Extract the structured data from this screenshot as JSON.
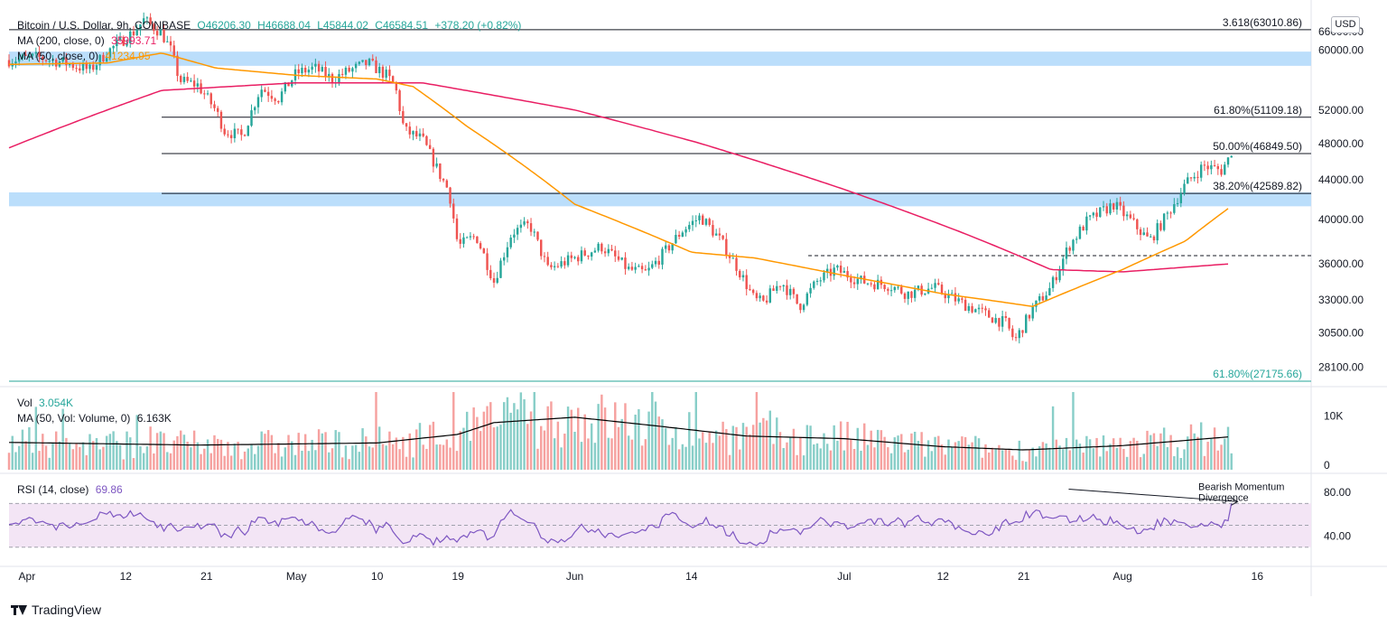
{
  "header": {
    "symbol": "Bitcoin / U.S. Dollar, 9h, COINBASE",
    "open": "O46206.30",
    "high": "H46688.04",
    "low": "L45844.02",
    "close": "C46584.51",
    "change": "+378.20 (+0.82%)",
    "ma200_label": "MA (200, close, 0)",
    "ma200_value": "35993.71",
    "ma50_label": "MA (50, close, 0)",
    "ma50_value": "41234.95",
    "vol_label": "Vol",
    "vol_value": "3.054K",
    "volma_label": "MA (50, Vol: Volume, 0)",
    "volma_value": "6.163K",
    "rsi_label": "RSI (14, close)",
    "rsi_value": "69.86"
  },
  "currency_button": "USD",
  "branding": "TradingView",
  "chart_data": {
    "type": "candlestick",
    "colors": {
      "up": "#26a69a",
      "down": "#ef5350",
      "ma200": "#e91e63",
      "ma50": "#ff9800",
      "volma": "#000000",
      "rsi": "#7e57c2",
      "rsi_band": "#f3e5f5",
      "zone": "#bbdefb"
    },
    "price_axis": {
      "scale": "log",
      "ylim": [
        27000,
        66500
      ],
      "ticks": [
        {
          "v": 60000,
          "t": "60000.00"
        },
        {
          "v": 52000,
          "t": "52000.00"
        },
        {
          "v": 48000,
          "t": "48000.00"
        },
        {
          "v": 44000,
          "t": "44000.00"
        },
        {
          "v": 40000,
          "t": "40000.00"
        },
        {
          "v": 36000,
          "t": "36000.00"
        },
        {
          "v": 33000,
          "t": "33000.00"
        },
        {
          "v": 30500,
          "t": "30500.00"
        },
        {
          "v": 28100,
          "t": "28100.00"
        }
      ],
      "partial_top_tick": {
        "v": 66000,
        "t": "66000.00"
      }
    },
    "x_axis": {
      "start": "2021-03-30",
      "end": "2021-08-22",
      "ticks": [
        {
          "date": "2021-04-01",
          "t": "Apr"
        },
        {
          "date": "2021-04-12",
          "t": "12"
        },
        {
          "date": "2021-04-21",
          "t": "21"
        },
        {
          "date": "2021-05-01",
          "t": "May"
        },
        {
          "date": "2021-05-10",
          "t": "10"
        },
        {
          "date": "2021-05-19",
          "t": "19"
        },
        {
          "date": "2021-06-01",
          "t": "Jun"
        },
        {
          "date": "2021-06-14",
          "t": "14"
        },
        {
          "date": "2021-07-01",
          "t": "Jul"
        },
        {
          "date": "2021-07-12",
          "t": "12"
        },
        {
          "date": "2021-07-21",
          "t": "21"
        },
        {
          "date": "2021-08-01",
          "t": "Aug"
        },
        {
          "date": "2021-08-16",
          "t": "16"
        }
      ]
    },
    "fib_levels": [
      {
        "label": "3.618(63010.86)",
        "value": 63010.86,
        "from": "2021-03-30"
      },
      {
        "label": "61.80%(51109.18)",
        "value": 51109.18,
        "from": "2021-04-16"
      },
      {
        "label": "50.00%(46849.50)",
        "value": 46849.5,
        "from": "2021-04-16"
      },
      {
        "label": "38.20%(42589.82)",
        "value": 42589.82,
        "from": "2021-04-16"
      },
      {
        "label": "61.80%(27175.66)",
        "value": 27175.66,
        "from": "2021-03-30",
        "color": "#26a69a"
      }
    ],
    "zones": [
      {
        "low": 57800,
        "high": 59800
      },
      {
        "low": 41300,
        "high": 42700
      }
    ],
    "dashed_level": {
      "value": 36700,
      "from": "2021-06-27",
      "to": "2021-08-13"
    },
    "price_path": [
      [
        "2021-03-30",
        58600
      ],
      [
        "2021-04-02",
        59000
      ],
      [
        "2021-04-05",
        58300
      ],
      [
        "2021-04-08",
        57200
      ],
      [
        "2021-04-10",
        59800
      ],
      [
        "2021-04-13",
        62800
      ],
      [
        "2021-04-14",
        64500
      ],
      [
        "2021-04-16",
        62500
      ],
      [
        "2021-04-17",
        60000
      ],
      [
        "2021-04-18",
        55800
      ],
      [
        "2021-04-20",
        55200
      ],
      [
        "2021-04-22",
        52000
      ],
      [
        "2021-04-23",
        49500
      ],
      [
        "2021-04-25",
        48800
      ],
      [
        "2021-04-27",
        54800
      ],
      [
        "2021-04-29",
        53500
      ],
      [
        "2021-05-01",
        56800
      ],
      [
        "2021-05-03",
        57500
      ],
      [
        "2021-05-05",
        56000
      ],
      [
        "2021-05-07",
        57200
      ],
      [
        "2021-05-09",
        58200
      ],
      [
        "2021-05-11",
        56500
      ],
      [
        "2021-05-12",
        55000
      ],
      [
        "2021-05-13",
        49500
      ],
      [
        "2021-05-15",
        48500
      ],
      [
        "2021-05-17",
        44500
      ],
      [
        "2021-05-18",
        42800
      ],
      [
        "2021-05-19",
        37500
      ],
      [
        "2021-05-21",
        38500
      ],
      [
        "2021-05-23",
        34500
      ],
      [
        "2021-05-25",
        38800
      ],
      [
        "2021-05-27",
        39500
      ],
      [
        "2021-05-29",
        35500
      ],
      [
        "2021-06-01",
        36500
      ],
      [
        "2021-06-04",
        37500
      ],
      [
        "2021-06-07",
        35500
      ],
      [
        "2021-06-09",
        35200
      ],
      [
        "2021-06-11",
        37000
      ],
      [
        "2021-06-13",
        39000
      ],
      [
        "2021-06-15",
        40300
      ],
      [
        "2021-06-17",
        38300
      ],
      [
        "2021-06-19",
        35800
      ],
      [
        "2021-06-21",
        33000
      ],
      [
        "2021-06-22",
        32800
      ],
      [
        "2021-06-24",
        34500
      ],
      [
        "2021-06-26",
        32500
      ],
      [
        "2021-06-28",
        34500
      ],
      [
        "2021-06-30",
        35500
      ],
      [
        "2021-07-03",
        34500
      ],
      [
        "2021-07-06",
        34200
      ],
      [
        "2021-07-08",
        33500
      ],
      [
        "2021-07-11",
        34000
      ],
      [
        "2021-07-14",
        32800
      ],
      [
        "2021-07-17",
        31800
      ],
      [
        "2021-07-19",
        31200
      ],
      [
        "2021-07-20",
        29900
      ],
      [
        "2021-07-22",
        32300
      ],
      [
        "2021-07-24",
        34000
      ],
      [
        "2021-07-26",
        37500
      ],
      [
        "2021-07-28",
        39800
      ],
      [
        "2021-07-31",
        41500
      ],
      [
        "2021-08-02",
        39800
      ],
      [
        "2021-08-04",
        38000
      ],
      [
        "2021-08-06",
        40500
      ],
      [
        "2021-08-08",
        43500
      ],
      [
        "2021-08-10",
        45500
      ],
      [
        "2021-08-12",
        45000
      ],
      [
        "2021-08-13",
        46584
      ]
    ],
    "ma200_path": [
      [
        "2021-03-30",
        47500
      ],
      [
        "2021-04-16",
        54500
      ],
      [
        "2021-05-01",
        55500
      ],
      [
        "2021-05-15",
        55500
      ],
      [
        "2021-06-01",
        52000
      ],
      [
        "2021-06-15",
        48000
      ],
      [
        "2021-07-01",
        43000
      ],
      [
        "2021-07-15",
        38500
      ],
      [
        "2021-07-24",
        35500
      ],
      [
        "2021-08-01",
        35300
      ],
      [
        "2021-08-13",
        35993
      ]
    ],
    "ma50_path": [
      [
        "2021-03-30",
        58000
      ],
      [
        "2021-04-10",
        58200
      ],
      [
        "2021-04-16",
        59600
      ],
      [
        "2021-04-22",
        57500
      ],
      [
        "2021-05-01",
        56500
      ],
      [
        "2021-05-10",
        56000
      ],
      [
        "2021-05-14",
        55000
      ],
      [
        "2021-05-20",
        50000
      ],
      [
        "2021-06-01",
        41500
      ],
      [
        "2021-06-14",
        37000
      ],
      [
        "2021-06-21",
        36500
      ],
      [
        "2021-07-01",
        35000
      ],
      [
        "2021-07-12",
        33500
      ],
      [
        "2021-07-22",
        32500
      ],
      [
        "2021-08-01",
        35500
      ],
      [
        "2021-08-08",
        38000
      ],
      [
        "2021-08-13",
        41234
      ]
    ],
    "volume_axis": {
      "ylim": [
        0,
        14500
      ],
      "ticks": [
        {
          "v": 0,
          "t": "0"
        },
        {
          "v": 10000,
          "t": "10K"
        }
      ]
    },
    "volume_ma_path": [
      [
        "2021-03-30",
        5100
      ],
      [
        "2021-04-20",
        4600
      ],
      [
        "2021-05-10",
        5000
      ],
      [
        "2021-05-19",
        6600
      ],
      [
        "2021-05-23",
        8800
      ],
      [
        "2021-06-01",
        9800
      ],
      [
        "2021-06-10",
        8200
      ],
      [
        "2021-06-20",
        6300
      ],
      [
        "2021-07-01",
        5800
      ],
      [
        "2021-07-12",
        4300
      ],
      [
        "2021-07-21",
        3700
      ],
      [
        "2021-08-01",
        4500
      ],
      [
        "2021-08-13",
        6163
      ]
    ],
    "rsi_axis": {
      "ylim": [
        15,
        95
      ],
      "band": [
        30,
        70
      ],
      "mid": 50,
      "ticks": [
        {
          "v": 80,
          "t": "80.00"
        },
        {
          "v": 40,
          "t": "40.00"
        }
      ]
    },
    "divergence": {
      "from": [
        "2021-07-26",
        83
      ],
      "to": [
        "2021-08-13",
        70
      ],
      "label_lines": [
        "Bearish Momentum",
        "Divergence"
      ]
    }
  }
}
